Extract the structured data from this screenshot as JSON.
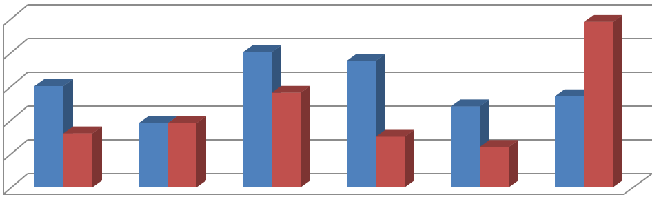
{
  "chart_data": {
    "type": "bar3d",
    "categories": [
      null,
      null,
      null,
      null,
      null,
      null
    ],
    "series": [
      {
        "color": "#4f81bd",
        "values": [
          3.0,
          1.9,
          4.0,
          3.75,
          2.4,
          2.7
        ]
      },
      {
        "color": "#c0504d",
        "values": [
          1.6,
          1.9,
          2.8,
          1.5,
          1.2,
          4.9
        ]
      }
    ],
    "ylim": [
      0,
      5
    ],
    "yticks": [
      0,
      1,
      2,
      3,
      4,
      5
    ],
    "grid": true
  }
}
